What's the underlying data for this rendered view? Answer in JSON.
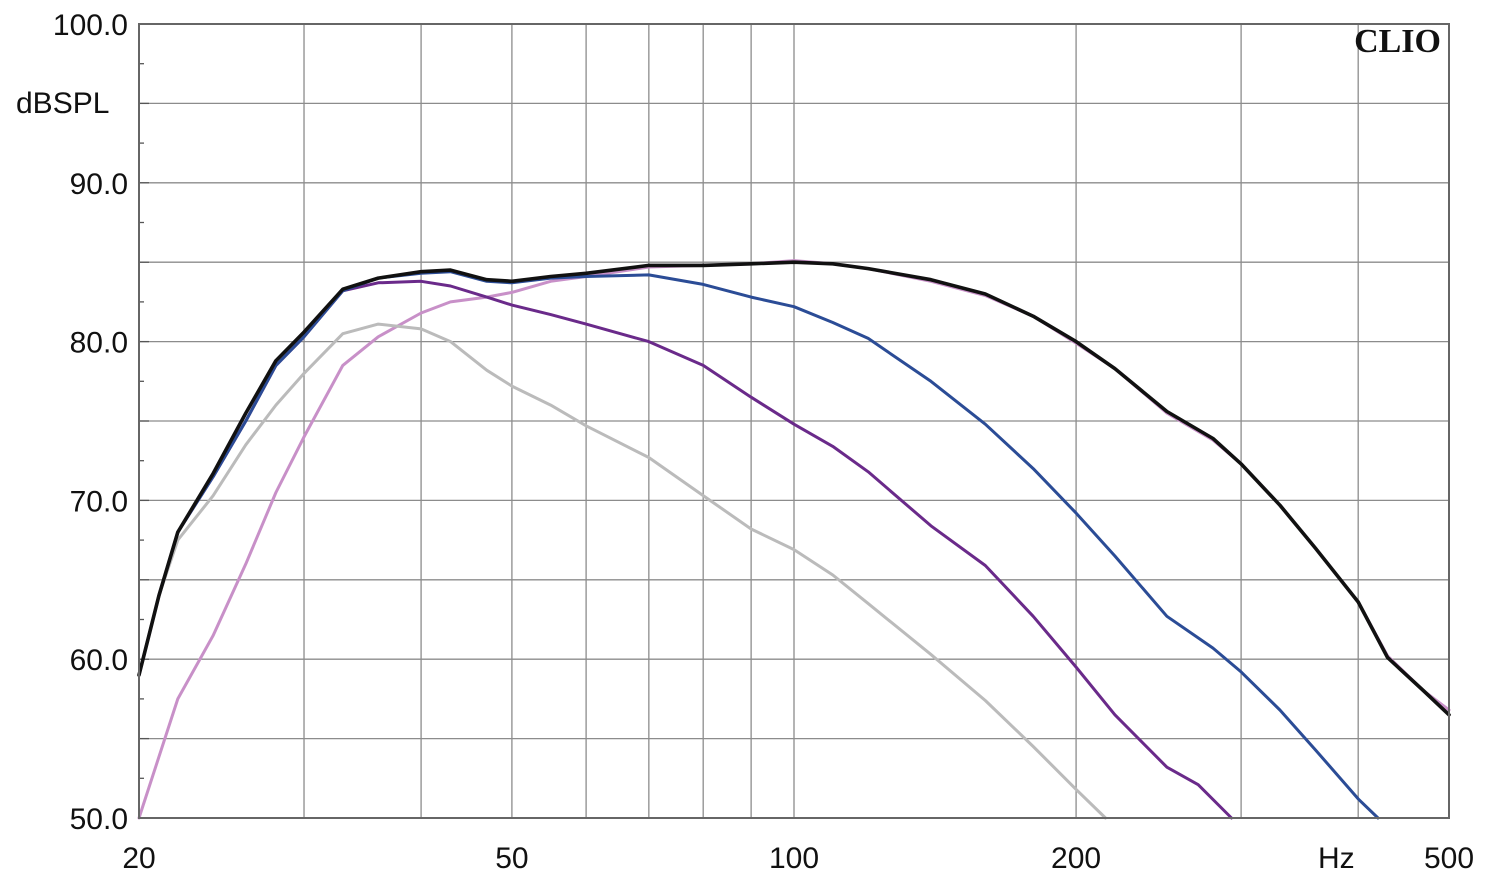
{
  "chart_data": {
    "type": "line",
    "brand": "CLIO",
    "ylabel": "dBSPL",
    "xunit": "Hz",
    "xscale": "log",
    "xlim": [
      20,
      500
    ],
    "ylim": [
      50,
      100
    ],
    "grid": true,
    "x_major_ticks": [
      20,
      50,
      100,
      200,
      500
    ],
    "x_tick_labels": [
      "20",
      "50",
      "100",
      "200",
      "500"
    ],
    "x_grid": [
      30,
      40,
      50,
      60,
      70,
      80,
      90,
      100,
      200,
      300,
      400
    ],
    "y_grid": [
      55,
      60,
      65,
      70,
      75,
      80,
      85,
      90,
      95
    ],
    "y_tick_values": [
      50,
      60,
      70,
      80,
      90,
      100
    ],
    "y_tick_labels": [
      "50.0",
      "60.0",
      "70.0",
      "80.0",
      "90.0",
      "100.0"
    ],
    "series": [
      {
        "color": "#c890c8",
        "points": [
          [
            20,
            50
          ],
          [
            22,
            57.5
          ],
          [
            24,
            61.5
          ],
          [
            26,
            66
          ],
          [
            28,
            70.5
          ],
          [
            30,
            74
          ],
          [
            33,
            78.5
          ],
          [
            36,
            80.3
          ],
          [
            40,
            81.8
          ],
          [
            43,
            82.5
          ],
          [
            47,
            82.8
          ],
          [
            50,
            83.1
          ],
          [
            55,
            83.8
          ],
          [
            60,
            84.1
          ],
          [
            70,
            84.7
          ],
          [
            80,
            84.8
          ],
          [
            90,
            84.9
          ],
          [
            100,
            85.1
          ],
          [
            110,
            84.9
          ],
          [
            120,
            84.6
          ],
          [
            140,
            83.8
          ],
          [
            160,
            82.9
          ],
          [
            180,
            81.6
          ],
          [
            200,
            79.9
          ],
          [
            220,
            78.3
          ],
          [
            250,
            75.5
          ],
          [
            280,
            73.8
          ],
          [
            300,
            72.3
          ],
          [
            330,
            69.7
          ],
          [
            360,
            67
          ],
          [
            400,
            63.6
          ],
          [
            430,
            60.2
          ],
          [
            470,
            58
          ],
          [
            500,
            56.8
          ]
        ]
      },
      {
        "color": "#bbbbbb",
        "points": [
          [
            20,
            59
          ],
          [
            21,
            64
          ],
          [
            22,
            67.5
          ],
          [
            24,
            70.3
          ],
          [
            26,
            73.5
          ],
          [
            28,
            76
          ],
          [
            30,
            78
          ],
          [
            33,
            80.5
          ],
          [
            36,
            81.1
          ],
          [
            40,
            80.8
          ],
          [
            43,
            80
          ],
          [
            47,
            78.2
          ],
          [
            50,
            77.2
          ],
          [
            55,
            76
          ],
          [
            60,
            74.7
          ],
          [
            70,
            72.7
          ],
          [
            80,
            70.3
          ],
          [
            90,
            68.2
          ],
          [
            100,
            66.9
          ],
          [
            110,
            65.3
          ],
          [
            120,
            63.5
          ],
          [
            140,
            60.3
          ],
          [
            160,
            57.4
          ],
          [
            180,
            54.5
          ],
          [
            200,
            51.8
          ],
          [
            215,
            50
          ]
        ]
      },
      {
        "color": "#6a2a8a",
        "points": [
          [
            20,
            59
          ],
          [
            21,
            64
          ],
          [
            22,
            68
          ],
          [
            24,
            71.5
          ],
          [
            26,
            75
          ],
          [
            28,
            78.5
          ],
          [
            30,
            80.3
          ],
          [
            33,
            83.2
          ],
          [
            36,
            83.7
          ],
          [
            40,
            83.8
          ],
          [
            43,
            83.5
          ],
          [
            47,
            82.8
          ],
          [
            50,
            82.3
          ],
          [
            55,
            81.7
          ],
          [
            60,
            81.1
          ],
          [
            70,
            80
          ],
          [
            80,
            78.5
          ],
          [
            90,
            76.5
          ],
          [
            100,
            74.8
          ],
          [
            110,
            73.4
          ],
          [
            120,
            71.8
          ],
          [
            140,
            68.4
          ],
          [
            160,
            65.9
          ],
          [
            180,
            62.7
          ],
          [
            200,
            59.5
          ],
          [
            220,
            56.5
          ],
          [
            250,
            53.2
          ],
          [
            270,
            52.1
          ],
          [
            293,
            50
          ]
        ]
      },
      {
        "color": "#2b4c96",
        "points": [
          [
            20,
            59
          ],
          [
            21,
            64
          ],
          [
            22,
            68
          ],
          [
            24,
            71.5
          ],
          [
            26,
            75
          ],
          [
            28,
            78.5
          ],
          [
            30,
            80.3
          ],
          [
            33,
            83.2
          ],
          [
            36,
            84
          ],
          [
            40,
            84.3
          ],
          [
            43,
            84.4
          ],
          [
            47,
            83.8
          ],
          [
            50,
            83.7
          ],
          [
            55,
            84
          ],
          [
            60,
            84.1
          ],
          [
            70,
            84.2
          ],
          [
            80,
            83.6
          ],
          [
            90,
            82.8
          ],
          [
            100,
            82.2
          ],
          [
            110,
            81.2
          ],
          [
            120,
            80.2
          ],
          [
            140,
            77.5
          ],
          [
            160,
            74.8
          ],
          [
            180,
            72
          ],
          [
            200,
            69.2
          ],
          [
            220,
            66.5
          ],
          [
            250,
            62.7
          ],
          [
            280,
            60.7
          ],
          [
            300,
            59.2
          ],
          [
            330,
            56.8
          ],
          [
            360,
            54.3
          ],
          [
            400,
            51.2
          ],
          [
            420,
            50
          ]
        ]
      },
      {
        "color": "#111111",
        "points": [
          [
            20,
            59
          ],
          [
            21,
            64
          ],
          [
            22,
            68
          ],
          [
            24,
            71.7
          ],
          [
            26,
            75.5
          ],
          [
            28,
            78.8
          ],
          [
            30,
            80.6
          ],
          [
            33,
            83.3
          ],
          [
            36,
            84
          ],
          [
            40,
            84.4
          ],
          [
            43,
            84.5
          ],
          [
            47,
            83.9
          ],
          [
            50,
            83.8
          ],
          [
            55,
            84.1
          ],
          [
            60,
            84.3
          ],
          [
            70,
            84.8
          ],
          [
            80,
            84.8
          ],
          [
            90,
            84.9
          ],
          [
            100,
            85
          ],
          [
            110,
            84.9
          ],
          [
            120,
            84.6
          ],
          [
            140,
            83.9
          ],
          [
            160,
            83
          ],
          [
            180,
            81.6
          ],
          [
            200,
            80
          ],
          [
            220,
            78.3
          ],
          [
            250,
            75.6
          ],
          [
            280,
            73.9
          ],
          [
            300,
            72.3
          ],
          [
            330,
            69.7
          ],
          [
            360,
            67
          ],
          [
            400,
            63.6
          ],
          [
            430,
            60.1
          ],
          [
            470,
            58
          ],
          [
            500,
            56.5
          ]
        ]
      }
    ]
  }
}
